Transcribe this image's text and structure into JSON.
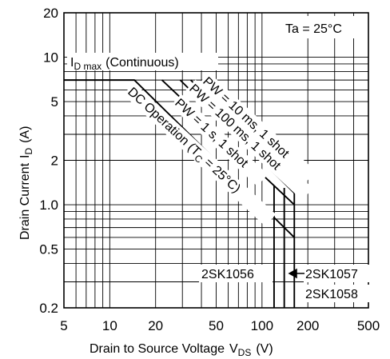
{
  "chart_data": {
    "type": "line",
    "title": "",
    "xlabel": "Drain to Source Voltage",
    "xlabel_sub": "DS",
    "xlabel_unit": "(V)",
    "ylabel": "Drain Current",
    "ylabel_sub": "D",
    "ylabel_unit": "(A)",
    "xscale": "log",
    "yscale": "log",
    "xlim": [
      5,
      500
    ],
    "ylim": [
      0.2,
      20
    ],
    "grid": true,
    "x_ticks": [
      {
        "value": 5,
        "label": "5"
      },
      {
        "value": 10,
        "label": "10"
      },
      {
        "value": 20,
        "label": "20"
      },
      {
        "value": 50,
        "label": "50"
      },
      {
        "value": 100,
        "label": "100"
      },
      {
        "value": 200,
        "label": "200"
      },
      {
        "value": 500,
        "label": "500"
      }
    ],
    "y_ticks": [
      {
        "value": 0.2,
        "label": "0.2"
      },
      {
        "value": 0.5,
        "label": "0.5"
      },
      {
        "value": 1,
        "label": "1.0"
      },
      {
        "value": 2,
        "label": "2"
      },
      {
        "value": 5,
        "label": "5"
      },
      {
        "value": 10,
        "label": "10"
      },
      {
        "value": 20,
        "label": "20"
      }
    ],
    "condition": "Ta = 25°C",
    "series": [
      {
        "name": "DC Operation (TC = 25°C)",
        "x": [
          5,
          14.5,
          163
        ],
        "y": [
          7,
          7,
          0.6
        ]
      },
      {
        "name": "PW = 1 s, 1 shot",
        "x": [
          22,
          163
        ],
        "y": [
          7,
          1.0
        ]
      },
      {
        "name": "PW = 100 ms, 1 shot",
        "x": [
          29,
          163
        ],
        "y": [
          7,
          1.2
        ]
      },
      {
        "name": "PW = 10 ms, 1 shot",
        "x": [
          34,
          163
        ],
        "y": [
          7,
          1.4
        ]
      }
    ],
    "vlimits": [
      {
        "name": "2SK1056",
        "x": 120,
        "y_top": 1.35
      },
      {
        "name": "2SK1057",
        "x": 140,
        "y_top": 1.3
      },
      {
        "name": "2SK1058",
        "x": 163,
        "y_top": 1.4
      }
    ],
    "annotations": {
      "id_max": "I",
      "id_max_sub": "D max",
      "id_max_suffix": "(Continuous)",
      "pw10": "PW = 10 ms, 1 shot",
      "pw100": "PW = 100 ms, 1 shot",
      "pw1s": "PW = 1 s, 1 shot",
      "dc_main": "DC Operation (T",
      "dc_sub": "C",
      "dc_tail": " = 25°C)",
      "k1056": "2SK1056",
      "k1057": "2SK1057",
      "k1058": "2SK1058"
    }
  }
}
